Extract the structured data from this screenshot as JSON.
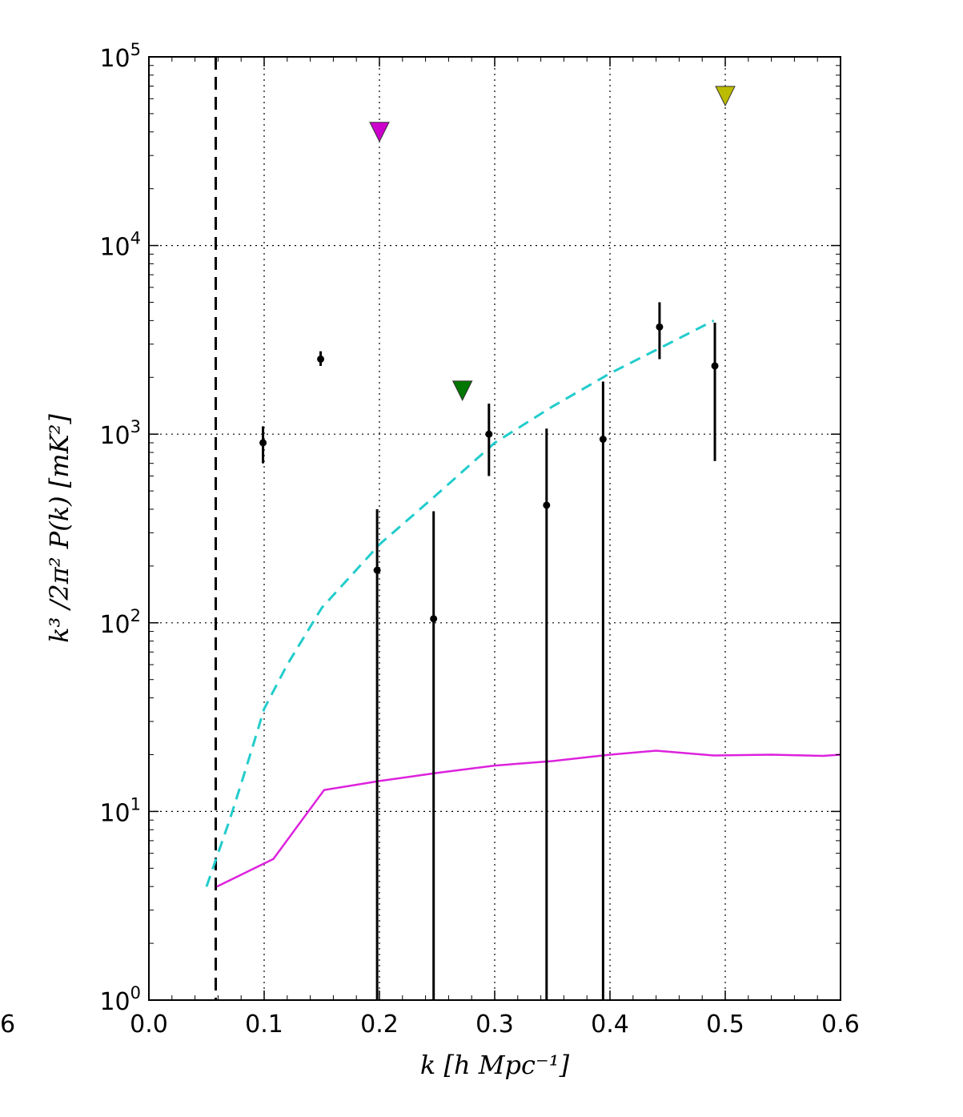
{
  "chart_data": {
    "type": "scatter",
    "title": "",
    "xlabel": "k [h Mpc⁻¹]",
    "ylabel": "k³ /2π²  P(k) [mK²]",
    "xlim": [
      0.0,
      0.6
    ],
    "ylim": [
      1,
      100000
    ],
    "yscale": "log",
    "grid": true,
    "x_ticks": [
      "0.0",
      "0.1",
      "0.2",
      "0.3",
      "0.4",
      "0.5",
      "0.6"
    ],
    "y_ticks": [
      {
        "base": "10",
        "exp": "0",
        "value": 1
      },
      {
        "base": "10",
        "exp": "1",
        "value": 10
      },
      {
        "base": "10",
        "exp": "2",
        "value": 100
      },
      {
        "base": "10",
        "exp": "3",
        "value": 1000
      },
      {
        "base": "10",
        "exp": "4",
        "value": 10000
      },
      {
        "base": "10",
        "exp": "5",
        "value": 100000
      }
    ],
    "stray_label": "6",
    "vline": {
      "x": 0.058,
      "color": "#000000",
      "style": "dashed"
    },
    "measurements": [
      {
        "x": 0.099,
        "y": 900,
        "ylo": 700,
        "yhi": 1100
      },
      {
        "x": 0.149,
        "y": 2500,
        "ylo": 2300,
        "yhi": 2750
      },
      {
        "x": 0.198,
        "y": 190,
        "ylo": 1,
        "yhi": 400
      },
      {
        "x": 0.247,
        "y": 105,
        "ylo": 1,
        "yhi": 390
      },
      {
        "x": 0.295,
        "y": 1000,
        "ylo": 600,
        "yhi": 1450
      },
      {
        "x": 0.345,
        "y": 420,
        "ylo": 1,
        "yhi": 1070
      },
      {
        "x": 0.394,
        "y": 940,
        "ylo": 1,
        "yhi": 1900
      },
      {
        "x": 0.443,
        "y": 3700,
        "ylo": 2500,
        "yhi": 5000
      },
      {
        "x": 0.491,
        "y": 2300,
        "ylo": 720,
        "yhi": 3900
      }
    ],
    "upper_limits": [
      {
        "x": 0.2,
        "y": 40000,
        "color": "#cc00cc"
      },
      {
        "x": 0.272,
        "y": 1700,
        "color": "#007700"
      },
      {
        "x": 0.5,
        "y": 62000,
        "color": "#bbbb00"
      }
    ],
    "series": [
      {
        "style": "dashed",
        "color": "#22cccc",
        "x": [
          0.05,
          0.06,
          0.07,
          0.08,
          0.09,
          0.1,
          0.12,
          0.15,
          0.2,
          0.25,
          0.3,
          0.35,
          0.4,
          0.45,
          0.49
        ],
        "y": [
          4,
          6,
          9,
          14,
          22,
          35,
          60,
          120,
          260,
          480,
          900,
          1400,
          2100,
          3000,
          4000
        ]
      },
      {
        "style": "solid",
        "color": "#dd22dd",
        "x": [
          0.059,
          0.108,
          0.152,
          0.2,
          0.25,
          0.3,
          0.35,
          0.4,
          0.44,
          0.49,
          0.54,
          0.585,
          0.6
        ],
        "y": [
          4,
          5.6,
          13,
          14.5,
          16,
          17.5,
          18.5,
          20,
          21,
          19.8,
          20,
          19.7,
          20
        ]
      }
    ]
  }
}
